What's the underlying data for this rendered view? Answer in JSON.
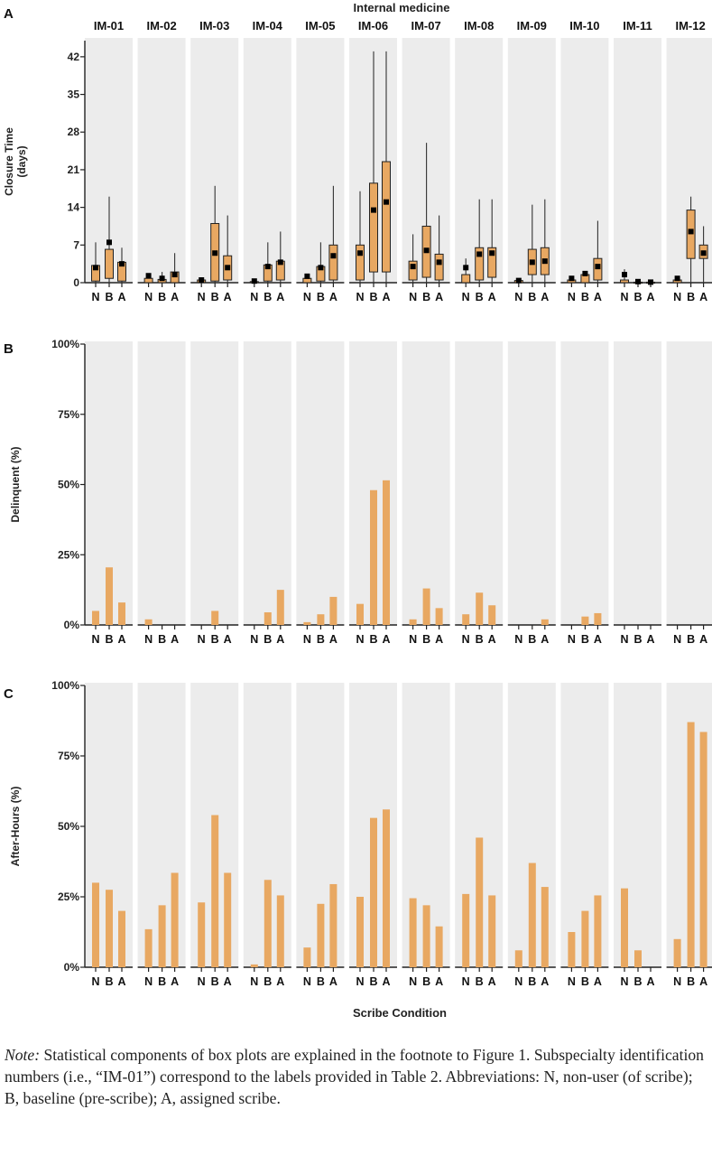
{
  "figure": {
    "group_title": "Internal medicine",
    "x_axis_title": "Scribe Condition",
    "subspecialties": [
      "IM-01",
      "IM-02",
      "IM-03",
      "IM-04",
      "IM-05",
      "IM-06",
      "IM-07",
      "IM-08",
      "IM-09",
      "IM-10",
      "IM-11",
      "IM-12"
    ],
    "conditions": [
      "N",
      "B",
      "A"
    ],
    "colors": {
      "fill": "#e8a862",
      "stroke": "#222222",
      "panel_bg": "#ececec",
      "median": "#000000"
    }
  },
  "chart_data": [
    {
      "type": "box",
      "panel_letter": "A",
      "ylabel": "Closure Time (days)",
      "ylabel_lines": [
        "Closure Time",
        "(days)"
      ],
      "ylim": [
        0,
        45
      ],
      "yticks": [
        0,
        7,
        14,
        21,
        28,
        35,
        42
      ],
      "ytick_labels": [
        "0",
        "7",
        "14",
        "21",
        "28",
        "35",
        "42"
      ],
      "groups": [
        {
          "name": "IM-01",
          "boxes": [
            {
              "c": "N",
              "q1": 0.3,
              "q3": 3.2,
              "min": 0,
              "max": 7.5,
              "mean": 2.8
            },
            {
              "c": "B",
              "q1": 0.8,
              "q3": 6.2,
              "min": 0,
              "max": 16,
              "mean": 7.5
            },
            {
              "c": "A",
              "q1": 0.3,
              "q3": 3.8,
              "min": 0,
              "max": 6.5,
              "mean": 3.5
            }
          ]
        },
        {
          "name": "IM-02",
          "boxes": [
            {
              "c": "N",
              "q1": 0,
              "q3": 0.8,
              "min": 0,
              "max": 1.5,
              "mean": 1.3
            },
            {
              "c": "B",
              "q1": 0,
              "q3": 0.6,
              "min": 0,
              "max": 2,
              "mean": 0.8
            },
            {
              "c": "A",
              "q1": 0,
              "q3": 2,
              "min": 0,
              "max": 5.5,
              "mean": 1.5
            }
          ]
        },
        {
          "name": "IM-03",
          "boxes": [
            {
              "c": "N",
              "q1": 0,
              "q3": 0.5,
              "min": 0,
              "max": 1,
              "mean": 0.5
            },
            {
              "c": "B",
              "q1": 0.3,
              "q3": 11,
              "min": 0,
              "max": 18,
              "mean": 5.5
            },
            {
              "c": "A",
              "q1": 0.5,
              "q3": 5,
              "min": 0,
              "max": 12.5,
              "mean": 2.8
            }
          ]
        },
        {
          "name": "IM-04",
          "boxes": [
            {
              "c": "N",
              "q1": 0,
              "q3": 0.2,
              "min": 0,
              "max": 0.4,
              "mean": 0.3
            },
            {
              "c": "B",
              "q1": 0.3,
              "q3": 3.3,
              "min": 0,
              "max": 7.5,
              "mean": 3
            },
            {
              "c": "A",
              "q1": 0.5,
              "q3": 4,
              "min": 0,
              "max": 9.5,
              "mean": 3.8
            }
          ]
        },
        {
          "name": "IM-05",
          "boxes": [
            {
              "c": "N",
              "q1": 0,
              "q3": 0.8,
              "min": 0,
              "max": 1.5,
              "mean": 1.2
            },
            {
              "c": "B",
              "q1": 0.3,
              "q3": 3,
              "min": 0,
              "max": 7.5,
              "mean": 2.8
            },
            {
              "c": "A",
              "q1": 0.5,
              "q3": 7,
              "min": 0,
              "max": 18,
              "mean": 5
            }
          ]
        },
        {
          "name": "IM-06",
          "boxes": [
            {
              "c": "N",
              "q1": 0.5,
              "q3": 7,
              "min": 0,
              "max": 17,
              "mean": 5.5
            },
            {
              "c": "B",
              "q1": 2,
              "q3": 18.5,
              "min": 0,
              "max": 43,
              "mean": 13.5
            },
            {
              "c": "A",
              "q1": 2,
              "q3": 22.5,
              "min": 0,
              "max": 43,
              "mean": 15
            }
          ]
        },
        {
          "name": "IM-07",
          "boxes": [
            {
              "c": "N",
              "q1": 0.5,
              "q3": 4,
              "min": 0,
              "max": 9,
              "mean": 3
            },
            {
              "c": "B",
              "q1": 1,
              "q3": 10.5,
              "min": 0,
              "max": 26,
              "mean": 6
            },
            {
              "c": "A",
              "q1": 0.5,
              "q3": 5.3,
              "min": 0,
              "max": 12.5,
              "mean": 3.8
            }
          ]
        },
        {
          "name": "IM-08",
          "boxes": [
            {
              "c": "N",
              "q1": 0,
              "q3": 1.5,
              "min": 0,
              "max": 4.5,
              "mean": 2.8
            },
            {
              "c": "B",
              "q1": 0.5,
              "q3": 6.5,
              "min": 0,
              "max": 15.5,
              "mean": 5.3
            },
            {
              "c": "A",
              "q1": 1,
              "q3": 6.5,
              "min": 0,
              "max": 15.5,
              "mean": 5.5
            }
          ]
        },
        {
          "name": "IM-09",
          "boxes": [
            {
              "c": "N",
              "q1": 0,
              "q3": 0.4,
              "min": 0,
              "max": 0.8,
              "mean": 0.4
            },
            {
              "c": "B",
              "q1": 1.5,
              "q3": 6.2,
              "min": 0,
              "max": 14.5,
              "mean": 3.8
            },
            {
              "c": "A",
              "q1": 1.5,
              "q3": 6.5,
              "min": 0,
              "max": 15.5,
              "mean": 4
            }
          ]
        },
        {
          "name": "IM-10",
          "boxes": [
            {
              "c": "N",
              "q1": 0,
              "q3": 0.5,
              "min": 0,
              "max": 1.2,
              "mean": 0.8
            },
            {
              "c": "B",
              "q1": 0,
              "q3": 1.5,
              "min": 0,
              "max": 2,
              "mean": 1.7
            },
            {
              "c": "A",
              "q1": 0.5,
              "q3": 4.5,
              "min": 0,
              "max": 11.5,
              "mean": 3
            }
          ]
        },
        {
          "name": "IM-11",
          "boxes": [
            {
              "c": "N",
              "q1": 0,
              "q3": 0.5,
              "min": 0,
              "max": 2.5,
              "mean": 1.5
            },
            {
              "c": "B",
              "q1": 0,
              "q3": 0.1,
              "min": 0,
              "max": 0.3,
              "mean": 0.2
            },
            {
              "c": "A",
              "q1": 0,
              "q3": 0.1,
              "min": 0,
              "max": 0.2,
              "mean": 0.1
            }
          ]
        },
        {
          "name": "IM-12",
          "boxes": [
            {
              "c": "N",
              "q1": 0,
              "q3": 0.5,
              "min": 0,
              "max": 1.2,
              "mean": 0.8
            },
            {
              "c": "B",
              "q1": 4.5,
              "q3": 13.5,
              "min": 0,
              "max": 16,
              "mean": 9.5
            },
            {
              "c": "A",
              "q1": 4.5,
              "q3": 7,
              "min": 0,
              "max": 10.5,
              "mean": 5.5
            }
          ]
        }
      ]
    },
    {
      "type": "bar",
      "panel_letter": "B",
      "ylabel": "Delinquent (%)",
      "ylim": [
        0,
        100
      ],
      "yticks": [
        0,
        25,
        50,
        75,
        100
      ],
      "ytick_labels": [
        "0%",
        "25%",
        "50%",
        "75%",
        "100%"
      ],
      "categories": [
        "IM-01",
        "IM-02",
        "IM-03",
        "IM-04",
        "IM-05",
        "IM-06",
        "IM-07",
        "IM-08",
        "IM-09",
        "IM-10",
        "IM-11",
        "IM-12"
      ],
      "values": [
        [
          5,
          20.5,
          8
        ],
        [
          2,
          0,
          0
        ],
        [
          0,
          5,
          0
        ],
        [
          0,
          4.5,
          12.5
        ],
        [
          1,
          3.8,
          10
        ],
        [
          7.5,
          48,
          51.5
        ],
        [
          2,
          13,
          6
        ],
        [
          3.8,
          11.5,
          7
        ],
        [
          0,
          0,
          2
        ],
        [
          0,
          3,
          4.2
        ],
        [
          0,
          0,
          0
        ],
        [
          0,
          0,
          0
        ]
      ]
    },
    {
      "type": "bar",
      "panel_letter": "C",
      "ylabel": "After-Hours (%)",
      "ylim": [
        0,
        100
      ],
      "yticks": [
        0,
        25,
        50,
        75,
        100
      ],
      "ytick_labels": [
        "0%",
        "25%",
        "50%",
        "75%",
        "100%"
      ],
      "categories": [
        "IM-01",
        "IM-02",
        "IM-03",
        "IM-04",
        "IM-05",
        "IM-06",
        "IM-07",
        "IM-08",
        "IM-09",
        "IM-10",
        "IM-11",
        "IM-12"
      ],
      "values": [
        [
          30,
          27.5,
          20
        ],
        [
          13.5,
          22,
          33.5
        ],
        [
          23,
          54,
          33.5
        ],
        [
          1,
          31,
          25.5
        ],
        [
          7,
          22.5,
          29.5
        ],
        [
          25,
          53,
          56
        ],
        [
          24.5,
          22,
          14.5
        ],
        [
          26,
          46,
          25.5
        ],
        [
          6,
          37,
          28.5
        ],
        [
          12.5,
          20,
          25.5
        ],
        [
          28,
          6,
          0
        ],
        [
          10,
          87,
          83.5
        ]
      ]
    }
  ],
  "note": {
    "lead": "Note:",
    "text": " Statistical components of box plots are explained in the footnote to Figure 1. Subspecialty identification numbers (i.e., “IM-01”) correspond to the labels provided in Table 2. Abbreviations: N, non-user (of scribe); B, baseline (pre-scribe); A, assigned scribe."
  }
}
